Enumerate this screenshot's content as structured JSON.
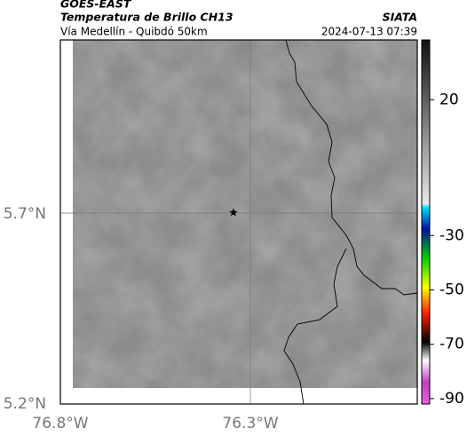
{
  "header": {
    "title": "GOES-EAST",
    "subtitle": "Temperatura de Brillo CH13",
    "source": "SIATA",
    "location": "Vía Medellín - Quibdó 50km",
    "datetime": "2024-07-13 07:39"
  },
  "map": {
    "xticks": [
      "76.8°W",
      "76.3°W"
    ],
    "yticks": [
      "5.7°N",
      "5.2°N"
    ]
  },
  "colorbar": {
    "ylim": [
      42,
      -92
    ],
    "yticks": [
      20,
      -30,
      -50,
      -70,
      -90
    ]
  }
}
